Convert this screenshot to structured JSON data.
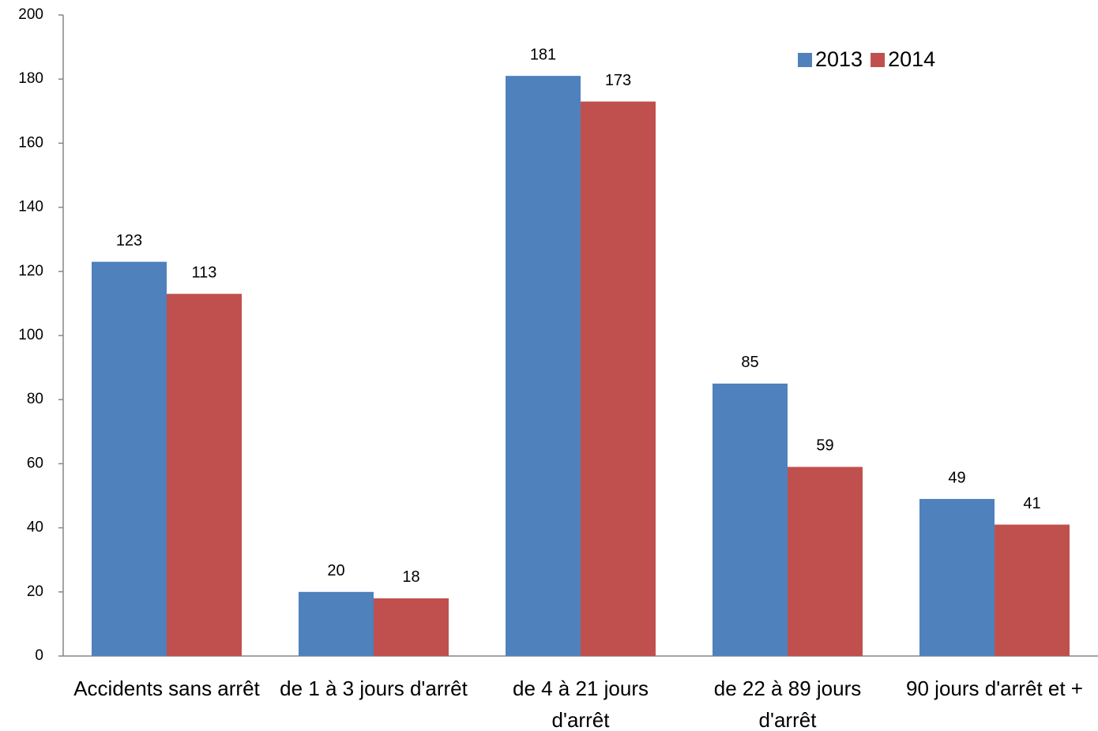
{
  "chart_data": {
    "type": "bar",
    "categories": [
      "Accidents sans arrêt",
      "de 1 à 3 jours d'arrêt",
      "de 4 à 21 jours d'arrêt",
      "de 22 à 89 jours d'arrêt",
      "90 jours d'arrêt et +"
    ],
    "series": [
      {
        "name": "2013",
        "color": "#4f81bd",
        "values": [
          123,
          20,
          181,
          85,
          49
        ]
      },
      {
        "name": "2014",
        "color": "#c0504d",
        "values": [
          113,
          18,
          173,
          59,
          41
        ]
      }
    ],
    "ylim": [
      0,
      200
    ],
    "yticks": [
      0,
      20,
      40,
      60,
      80,
      100,
      120,
      140,
      160,
      180,
      200
    ],
    "grid": false,
    "legend": "top-right"
  }
}
